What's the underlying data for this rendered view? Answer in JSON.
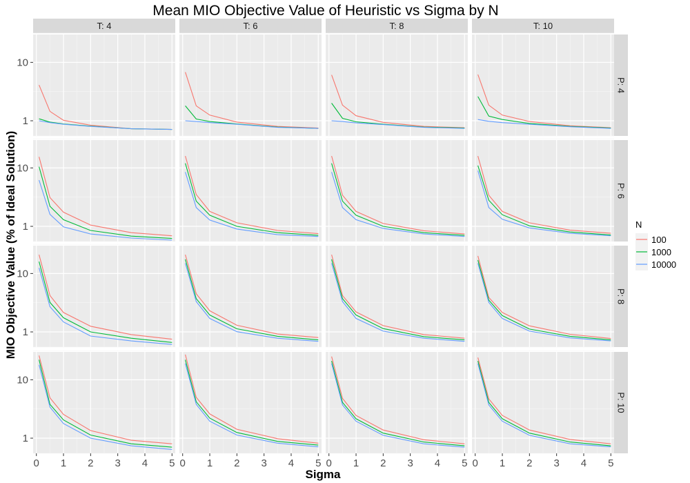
{
  "chart_data": {
    "type": "line",
    "title": "Mean MIO Objective Value of Heuristic vs Sigma by N",
    "xlabel": "Sigma",
    "ylabel": "MIO Objective Value (% of Ideal Solution)",
    "x_scale": "linear",
    "y_scale": "log10",
    "xlim": [
      -0.12,
      5.12
    ],
    "ylim": [
      0.55,
      30
    ],
    "x_ticks": [
      0,
      1,
      2,
      3,
      4,
      5
    ],
    "x_tick_labels": [
      "0",
      "1",
      "2",
      "3",
      "4",
      "5"
    ],
    "y_ticks": [
      1,
      10
    ],
    "y_tick_labels": [
      "1",
      "10"
    ],
    "grid": true,
    "legend": {
      "title": "N",
      "position": "right",
      "entries": [
        {
          "label": "100",
          "color": "#F8766D"
        },
        {
          "label": "1000",
          "color": "#00BA38"
        },
        {
          "label": "10000",
          "color": "#619CFF"
        }
      ]
    },
    "facet_cols": {
      "labels": [
        "T: 4",
        "T: 6",
        "T: 8",
        "T: 10"
      ]
    },
    "facet_rows": {
      "labels": [
        "P: 4",
        "P: 6",
        "P: 8",
        "P: 10"
      ]
    },
    "x": [
      0.1,
      0.5,
      1,
      2,
      3.5,
      5
    ],
    "panels": [
      [
        {
          "series": [
            {
              "name": "100",
              "values": [
                4.1,
                1.45,
                1.02,
                0.84,
                0.73,
                0.71
              ]
            },
            {
              "name": "1000",
              "values": [
                1.08,
                0.95,
                0.88,
                0.81,
                0.73,
                0.71
              ]
            },
            {
              "name": "10000",
              "values": [
                1.0,
                0.93,
                0.87,
                0.8,
                0.73,
                0.71
              ]
            }
          ]
        },
        {
          "series": [
            {
              "name": "100",
              "values": [
                6.8,
                1.8,
                1.25,
                0.95,
                0.8,
                0.75
              ]
            },
            {
              "name": "1000",
              "values": [
                1.8,
                1.07,
                0.97,
                0.88,
                0.78,
                0.74
              ]
            },
            {
              "name": "10000",
              "values": [
                1.0,
                0.97,
                0.93,
                0.87,
                0.77,
                0.74
              ]
            }
          ]
        },
        {
          "series": [
            {
              "name": "100",
              "values": [
                6.1,
                1.85,
                1.22,
                0.94,
                0.8,
                0.76
              ]
            },
            {
              "name": "1000",
              "values": [
                2.0,
                1.1,
                0.96,
                0.87,
                0.78,
                0.75
              ]
            },
            {
              "name": "10000",
              "values": [
                1.0,
                0.97,
                0.92,
                0.86,
                0.77,
                0.74
              ]
            }
          ]
        },
        {
          "series": [
            {
              "name": "100",
              "values": [
                6.2,
                1.85,
                1.25,
                0.97,
                0.82,
                0.76
              ]
            },
            {
              "name": "1000",
              "values": [
                2.6,
                1.2,
                1.05,
                0.9,
                0.8,
                0.75
              ]
            },
            {
              "name": "10000",
              "values": [
                1.05,
                0.98,
                0.93,
                0.87,
                0.79,
                0.74
              ]
            }
          ]
        }
      ],
      [
        {
          "series": [
            {
              "name": "100",
              "values": [
                15.5,
                3.1,
                1.75,
                1.05,
                0.78,
                0.69
              ]
            },
            {
              "name": "1000",
              "values": [
                10.5,
                2.2,
                1.3,
                0.85,
                0.68,
                0.62
              ]
            },
            {
              "name": "10000",
              "values": [
                6.2,
                1.6,
                0.98,
                0.74,
                0.63,
                0.58
              ]
            }
          ]
        },
        {
          "series": [
            {
              "name": "100",
              "values": [
                16.0,
                3.5,
                1.8,
                1.15,
                0.85,
                0.75
              ]
            },
            {
              "name": "1000",
              "values": [
                12.0,
                2.7,
                1.55,
                1.0,
                0.78,
                0.7
              ]
            },
            {
              "name": "10000",
              "values": [
                8.5,
                2.1,
                1.28,
                0.9,
                0.72,
                0.67
              ]
            }
          ]
        },
        {
          "series": [
            {
              "name": "100",
              "values": [
                16.0,
                3.4,
                1.8,
                1.12,
                0.84,
                0.74
              ]
            },
            {
              "name": "1000",
              "values": [
                12.0,
                2.7,
                1.55,
                1.0,
                0.78,
                0.7
              ]
            },
            {
              "name": "10000",
              "values": [
                8.5,
                2.1,
                1.3,
                0.92,
                0.74,
                0.67
              ]
            }
          ]
        },
        {
          "series": [
            {
              "name": "100",
              "values": [
                16.0,
                3.4,
                1.8,
                1.15,
                0.86,
                0.76
              ]
            },
            {
              "name": "1000",
              "values": [
                11.0,
                2.8,
                1.58,
                1.02,
                0.8,
                0.71
              ]
            },
            {
              "name": "10000",
              "values": [
                9.0,
                2.1,
                1.32,
                0.94,
                0.76,
                0.69
              ]
            }
          ]
        }
      ],
      [
        {
          "series": [
            {
              "name": "100",
              "values": [
                21.0,
                4.2,
                2.15,
                1.25,
                0.9,
                0.75
              ]
            },
            {
              "name": "1000",
              "values": [
                16.0,
                3.2,
                1.75,
                1.0,
                0.78,
                0.66
              ]
            },
            {
              "name": "10000",
              "values": [
                12.5,
                2.7,
                1.48,
                0.85,
                0.7,
                0.61
              ]
            }
          ]
        },
        {
          "series": [
            {
              "name": "100",
              "values": [
                21.0,
                4.5,
                2.3,
                1.3,
                0.92,
                0.8
              ]
            },
            {
              "name": "1000",
              "values": [
                17.5,
                3.7,
                1.95,
                1.13,
                0.84,
                0.73
              ]
            },
            {
              "name": "10000",
              "values": [
                15.0,
                3.3,
                1.7,
                1.01,
                0.78,
                0.69
              ]
            }
          ]
        },
        {
          "series": [
            {
              "name": "100",
              "values": [
                21.0,
                4.2,
                2.2,
                1.28,
                0.9,
                0.78
              ]
            },
            {
              "name": "1000",
              "values": [
                17.5,
                3.7,
                1.95,
                1.14,
                0.83,
                0.73
              ]
            },
            {
              "name": "10000",
              "values": [
                15.0,
                3.3,
                1.7,
                1.03,
                0.78,
                0.69
              ]
            }
          ]
        },
        {
          "series": [
            {
              "name": "100",
              "values": [
                20.0,
                3.9,
                2.15,
                1.27,
                0.91,
                0.77
              ]
            },
            {
              "name": "1000",
              "values": [
                17.0,
                3.5,
                1.9,
                1.12,
                0.84,
                0.73
              ]
            },
            {
              "name": "10000",
              "values": [
                15.0,
                3.2,
                1.7,
                1.03,
                0.79,
                0.7
              ]
            }
          ]
        }
      ],
      [
        {
          "series": [
            {
              "name": "100",
              "values": [
                26.0,
                4.9,
                2.55,
                1.35,
                0.92,
                0.8
              ]
            },
            {
              "name": "1000",
              "values": [
                22.0,
                3.8,
                2.05,
                1.13,
                0.8,
                0.7
              ]
            },
            {
              "name": "10000",
              "values": [
                18.0,
                3.4,
                1.78,
                1.0,
                0.74,
                0.64
              ]
            }
          ]
        },
        {
          "series": [
            {
              "name": "100",
              "values": [
                27.0,
                5.0,
                2.6,
                1.42,
                0.98,
                0.82
              ]
            },
            {
              "name": "1000",
              "values": [
                22.0,
                4.2,
                2.2,
                1.25,
                0.88,
                0.76
              ]
            },
            {
              "name": "10000",
              "values": [
                19.0,
                3.8,
                1.95,
                1.13,
                0.82,
                0.71
              ]
            }
          ]
        },
        {
          "series": [
            {
              "name": "100",
              "values": [
                25.0,
                4.8,
                2.45,
                1.38,
                0.94,
                0.8
              ]
            },
            {
              "name": "1000",
              "values": [
                21.0,
                4.1,
                2.15,
                1.22,
                0.86,
                0.74
              ]
            },
            {
              "name": "10000",
              "values": [
                19.0,
                3.7,
                1.95,
                1.12,
                0.8,
                0.7
              ]
            }
          ]
        },
        {
          "series": [
            {
              "name": "100",
              "values": [
                24.0,
                4.7,
                2.45,
                1.38,
                0.95,
                0.8
              ]
            },
            {
              "name": "1000",
              "values": [
                21.0,
                4.1,
                2.15,
                1.22,
                0.86,
                0.74
              ]
            },
            {
              "name": "10000",
              "values": [
                19.0,
                3.7,
                1.95,
                1.12,
                0.8,
                0.71
              ]
            }
          ]
        }
      ]
    ]
  }
}
